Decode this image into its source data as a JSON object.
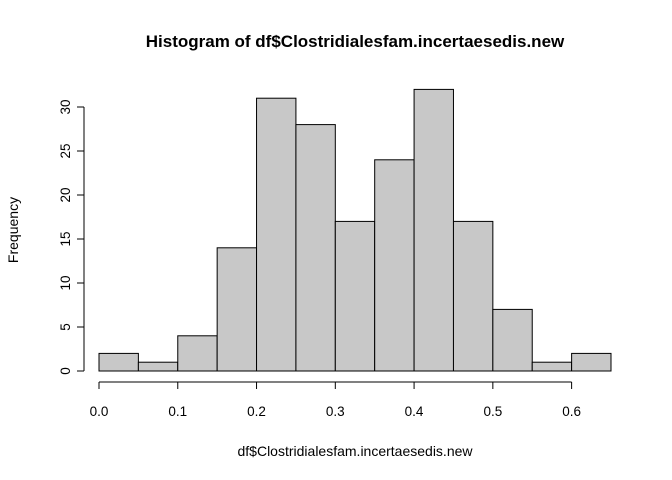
{
  "chart_data": {
    "type": "bar",
    "title": "Histogram of df$Clostridialesfam.incertaesedis.new",
    "xlabel": "df$Clostridialesfam.incertaesedis.new",
    "ylabel": "Frequency",
    "bins": [
      {
        "start": 0.0,
        "end": 0.05,
        "count": 2
      },
      {
        "start": 0.05,
        "end": 0.1,
        "count": 1
      },
      {
        "start": 0.1,
        "end": 0.15,
        "count": 4
      },
      {
        "start": 0.15,
        "end": 0.2,
        "count": 14
      },
      {
        "start": 0.2,
        "end": 0.25,
        "count": 31
      },
      {
        "start": 0.25,
        "end": 0.3,
        "count": 28
      },
      {
        "start": 0.3,
        "end": 0.35,
        "count": 17
      },
      {
        "start": 0.35,
        "end": 0.4,
        "count": 24
      },
      {
        "start": 0.4,
        "end": 0.45,
        "count": 32
      },
      {
        "start": 0.45,
        "end": 0.5,
        "count": 17
      },
      {
        "start": 0.5,
        "end": 0.55,
        "count": 7
      },
      {
        "start": 0.55,
        "end": 0.6,
        "count": 1
      },
      {
        "start": 0.6,
        "end": 0.65,
        "count": 2
      }
    ],
    "x_ticks": [
      0.0,
      0.1,
      0.2,
      0.3,
      0.4,
      0.5,
      0.6
    ],
    "x_tick_labels": [
      "0.0",
      "0.1",
      "0.2",
      "0.3",
      "0.4",
      "0.5",
      "0.6"
    ],
    "y_ticks": [
      0,
      5,
      10,
      15,
      20,
      25,
      30
    ],
    "y_tick_labels": [
      "0",
      "5",
      "10",
      "15",
      "20",
      "25",
      "30"
    ],
    "xlim": [
      0.0,
      0.65
    ],
    "ylim": [
      0,
      32
    ],
    "grid": false,
    "bar_color": "#c8c8c8",
    "edge_color": "#000000"
  }
}
